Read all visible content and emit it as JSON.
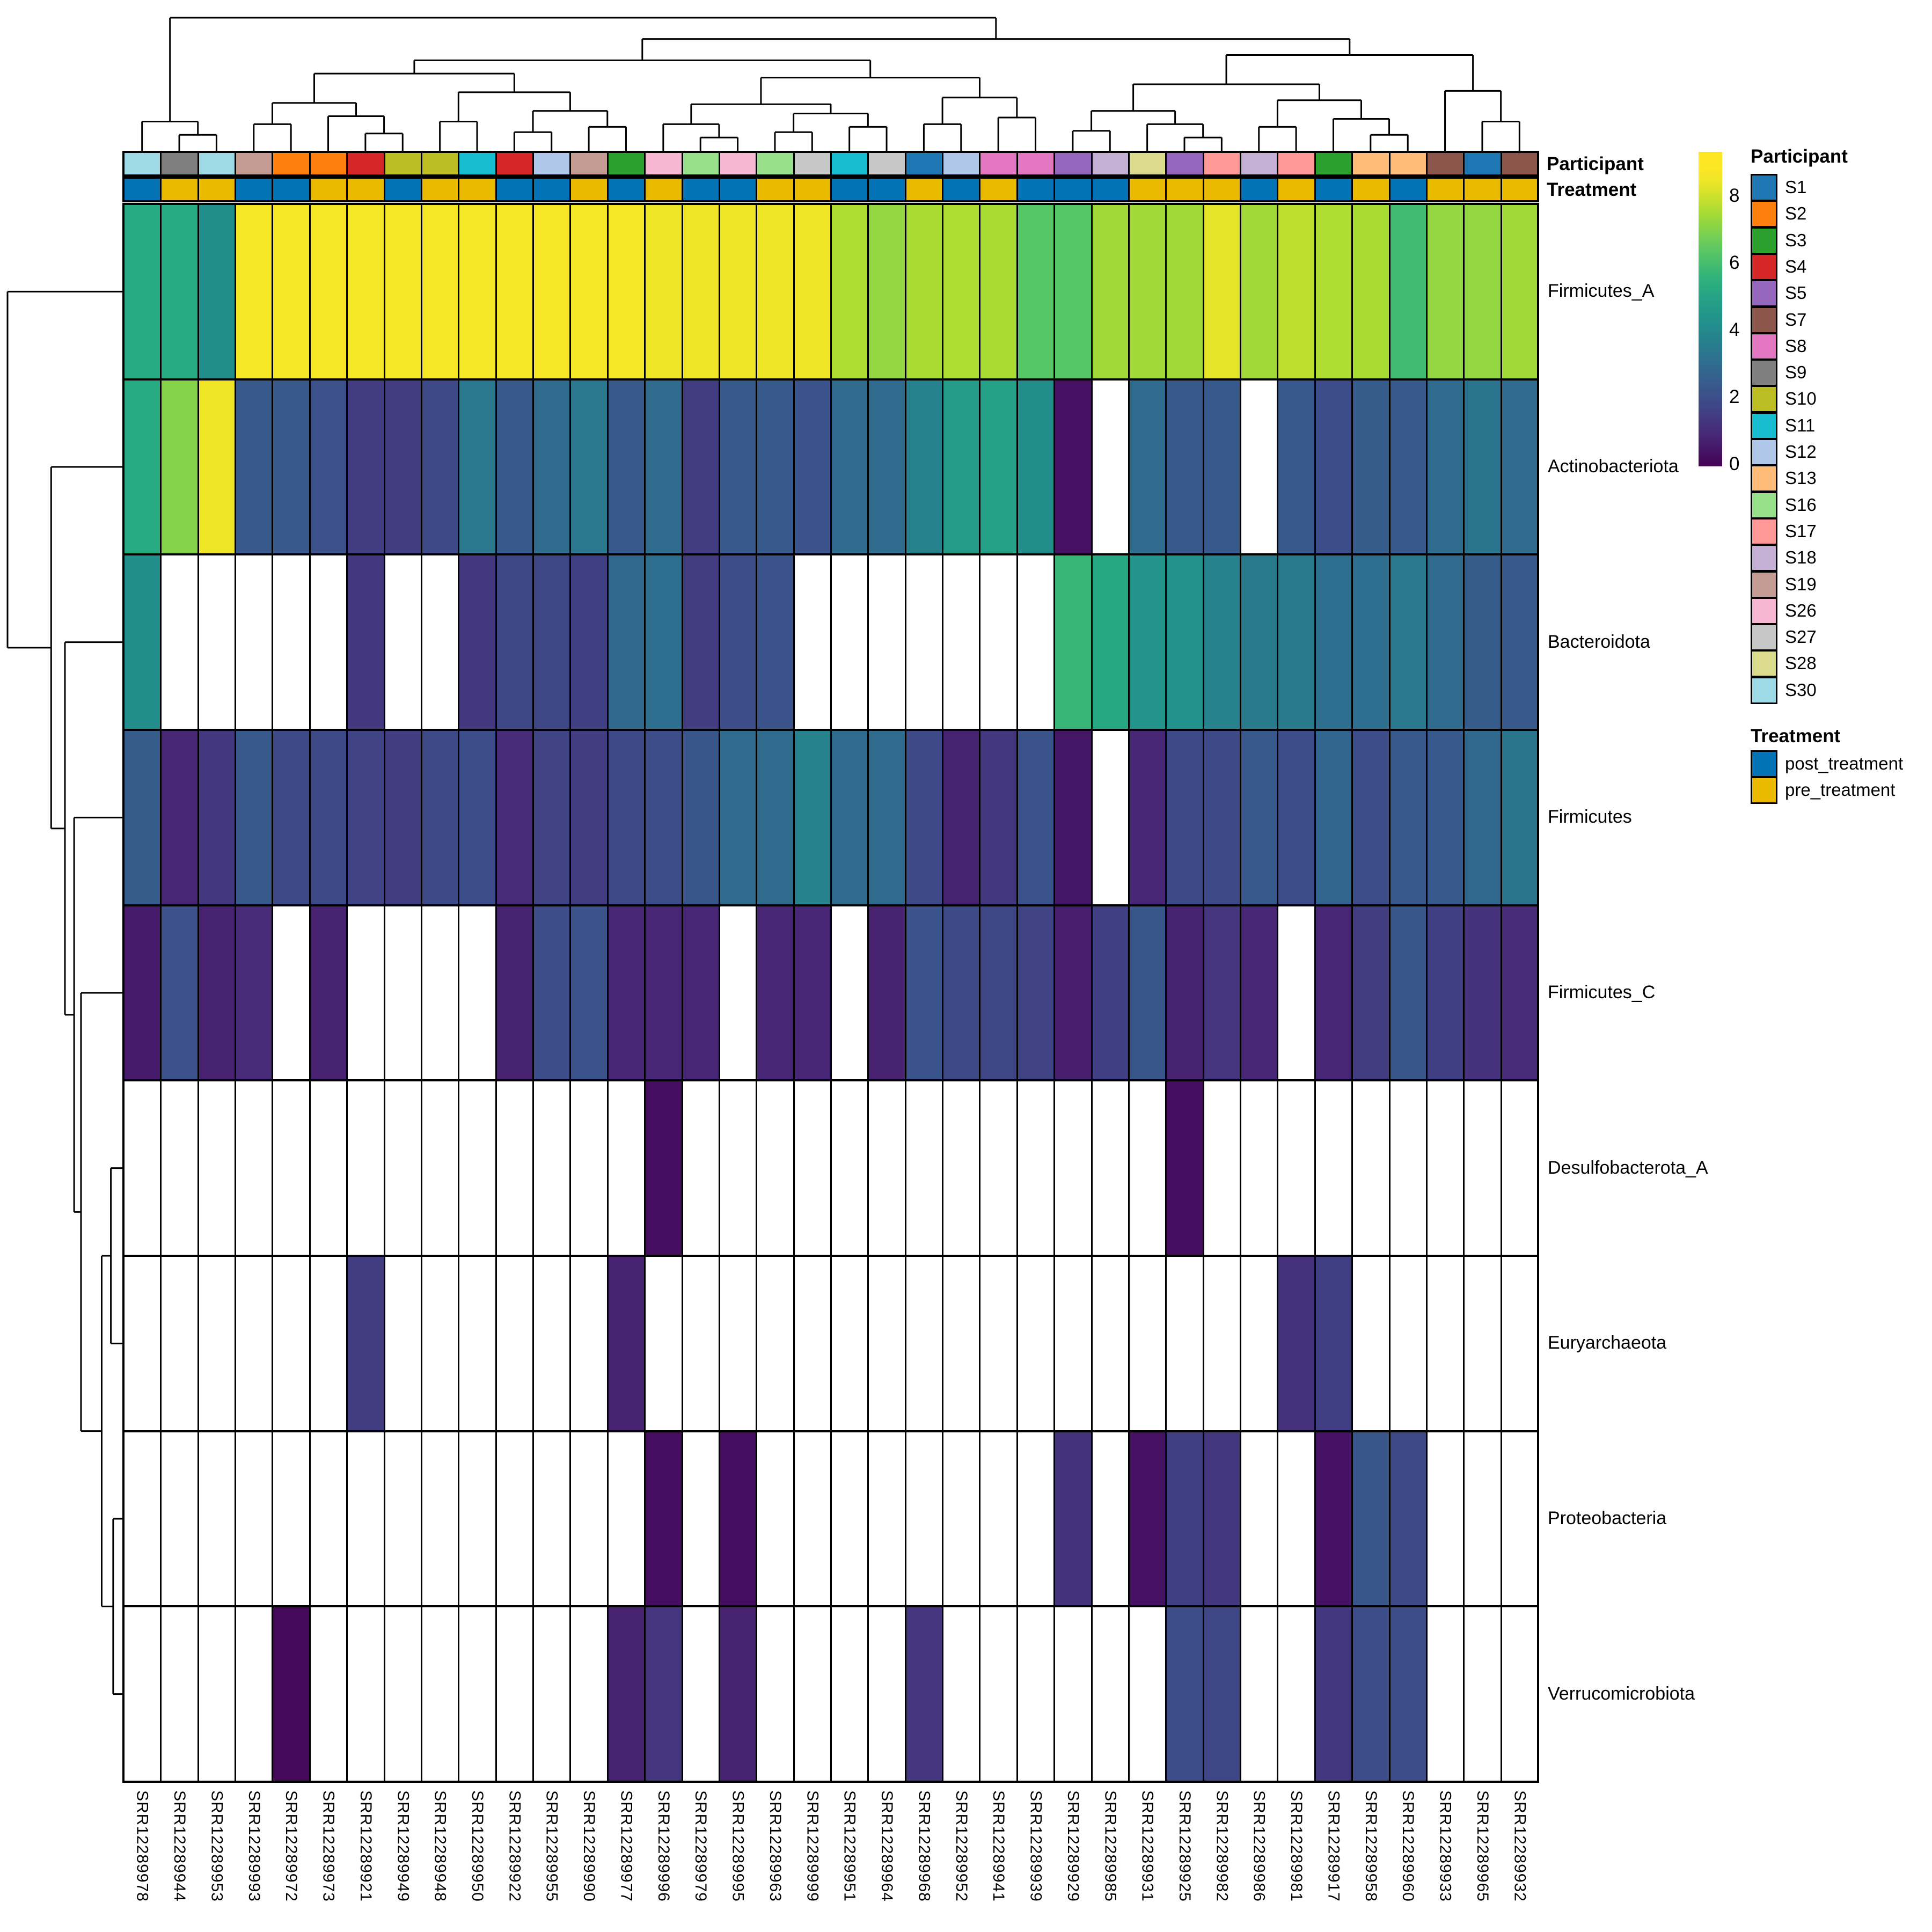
{
  "annotations": {
    "participant_label": "Participant",
    "treatment_label": "Treatment"
  },
  "legend": {
    "participant_title": "Participant",
    "treatment_title": "Treatment",
    "colorbar_ticks": [
      8,
      6,
      4,
      2,
      0
    ],
    "participants": [
      {
        "id": "S1",
        "color": "#1f77b4"
      },
      {
        "id": "S2",
        "color": "#ff7f0e"
      },
      {
        "id": "S3",
        "color": "#2ca02c"
      },
      {
        "id": "S4",
        "color": "#d62728"
      },
      {
        "id": "S5",
        "color": "#9467bd"
      },
      {
        "id": "S7",
        "color": "#8c564b"
      },
      {
        "id": "S8",
        "color": "#e377c2"
      },
      {
        "id": "S9",
        "color": "#7f7f7f"
      },
      {
        "id": "S10",
        "color": "#bcbd22"
      },
      {
        "id": "S11",
        "color": "#17becf"
      },
      {
        "id": "S12",
        "color": "#aec7e8"
      },
      {
        "id": "S13",
        "color": "#ffbb78"
      },
      {
        "id": "S16",
        "color": "#98df8a"
      },
      {
        "id": "S17",
        "color": "#ff9896"
      },
      {
        "id": "S18",
        "color": "#c5b0d5"
      },
      {
        "id": "S19",
        "color": "#c49c94"
      },
      {
        "id": "S26",
        "color": "#f7b6d2"
      },
      {
        "id": "S27",
        "color": "#c7c7c7"
      },
      {
        "id": "S28",
        "color": "#dbdb8d"
      },
      {
        "id": "S30",
        "color": "#9edae5"
      }
    ],
    "treatments": [
      {
        "id": "post_treatment",
        "color": "#0473b6"
      },
      {
        "id": "pre_treatment",
        "color": "#eaba00"
      }
    ]
  },
  "chart_data": {
    "type": "heatmap",
    "value_range": [
      0,
      8.6
    ],
    "na_color": "#ffffff",
    "viridis_stops": [
      "#440154",
      "#472d7b",
      "#3b528b",
      "#2c728e",
      "#21918c",
      "#27ad81",
      "#5ec962",
      "#aadc32",
      "#fde725"
    ],
    "columns": [
      "SRR12289978",
      "SRR12289944",
      "SRR12289953",
      "SRR12289993",
      "SRR12289972",
      "SRR12289973",
      "SRR12289921",
      "SRR12289949",
      "SRR12289948",
      "SRR12289950",
      "SRR12289922",
      "SRR12289955",
      "SRR12289990",
      "SRR12289977",
      "SRR12289996",
      "SRR12289979",
      "SRR12289995",
      "SRR12289963",
      "SRR12289999",
      "SRR12289951",
      "SRR12289964",
      "SRR12289968",
      "SRR12289952",
      "SRR12289941",
      "SRR12289939",
      "SRR12289929",
      "SRR12289985",
      "SRR12289931",
      "SRR12289925",
      "SRR12289982",
      "SRR12289986",
      "SRR12289981",
      "SRR12289917",
      "SRR12289958",
      "SRR12289960",
      "SRR12289933",
      "SRR12289965",
      "SRR12289932"
    ],
    "column_participant": [
      "S30",
      "S9",
      "S30",
      "S19",
      "S2",
      "S2",
      "S4",
      "S10",
      "S10",
      "S11",
      "S4",
      "S12",
      "S19",
      "S3",
      "S26",
      "S16",
      "S26",
      "S16",
      "S27",
      "S11",
      "S27",
      "S1",
      "S12",
      "S8",
      "S8",
      "S5",
      "S18",
      "S28",
      "S5",
      "S17",
      "S18",
      "S17",
      "S3",
      "S13",
      "S13",
      "S7",
      "S1",
      "S7"
    ],
    "column_treatment": [
      "post_treatment",
      "pre_treatment",
      "pre_treatment",
      "post_treatment",
      "post_treatment",
      "pre_treatment",
      "pre_treatment",
      "post_treatment",
      "pre_treatment",
      "pre_treatment",
      "post_treatment",
      "post_treatment",
      "pre_treatment",
      "post_treatment",
      "pre_treatment",
      "post_treatment",
      "post_treatment",
      "pre_treatment",
      "pre_treatment",
      "post_treatment",
      "post_treatment",
      "pre_treatment",
      "post_treatment",
      "pre_treatment",
      "post_treatment",
      "post_treatment",
      "post_treatment",
      "pre_treatment",
      "pre_treatment",
      "pre_treatment",
      "post_treatment",
      "pre_treatment",
      "post_treatment",
      "pre_treatment",
      "post_treatment",
      "pre_treatment",
      "pre_treatment",
      "pre_treatment"
    ],
    "rows": [
      "Firmicutes_A",
      "Actinobacteriota",
      "Bacteroidota",
      "Firmicutes",
      "Firmicutes_C",
      "Desulfobacterota_A",
      "Euryarchaeota",
      "Proteobacteria",
      "Verrucomicrobiota"
    ],
    "values": [
      [
        5.3,
        5.3,
        4.2,
        8.5,
        8.5,
        8.5,
        8.5,
        8.5,
        8.5,
        8.5,
        8.5,
        8.5,
        8.5,
        8.5,
        8.4,
        8.4,
        8.4,
        8.4,
        8.4,
        7.6,
        7.2,
        7.5,
        7.6,
        7.5,
        6.3,
        6.3,
        7.4,
        7.4,
        7.4,
        8.3,
        7.4,
        7.8,
        7.6,
        7.5,
        5.9,
        7.2,
        7.2,
        7.4
      ],
      [
        5.3,
        7.0,
        8.4,
        2.4,
        2.4,
        2.1,
        1.5,
        1.5,
        1.9,
        3.4,
        2.4,
        3.0,
        3.4,
        2.4,
        3.0,
        1.5,
        2.4,
        2.4,
        2.2,
        3.0,
        3.0,
        3.8,
        4.7,
        4.9,
        4.2,
        0.4,
        null,
        3.0,
        2.4,
        2.4,
        null,
        2.4,
        2.0,
        2.5,
        2.4,
        3.0,
        3.3,
        3.0
      ],
      [
        4.2,
        null,
        null,
        null,
        null,
        null,
        1.4,
        null,
        null,
        1.4,
        1.8,
        1.8,
        1.6,
        2.9,
        3.1,
        1.5,
        2.0,
        2.2,
        null,
        null,
        null,
        null,
        null,
        null,
        null,
        5.7,
        5.2,
        4.4,
        4.3,
        3.8,
        3.5,
        3.5,
        3.1,
        3.1,
        3.4,
        3.0,
        2.5,
        2.4
      ],
      [
        2.5,
        0.9,
        1.4,
        2.4,
        1.9,
        1.9,
        1.7,
        1.5,
        1.9,
        2.0,
        1.0,
        1.7,
        1.5,
        1.9,
        2.0,
        2.3,
        3.0,
        3.0,
        3.8,
        3.0,
        3.0,
        1.9,
        0.8,
        1.4,
        2.2,
        0.5,
        null,
        0.9,
        1.9,
        1.9,
        2.4,
        2.0,
        2.8,
        2.0,
        2.4,
        2.4,
        2.9,
        3.3
      ],
      [
        0.6,
        2.1,
        0.8,
        1.0,
        null,
        0.8,
        null,
        null,
        null,
        null,
        0.8,
        2.0,
        2.2,
        0.9,
        0.9,
        0.9,
        null,
        0.9,
        0.9,
        null,
        0.8,
        2.2,
        1.9,
        1.8,
        1.7,
        0.7,
        1.6,
        2.3,
        0.8,
        1.3,
        0.9,
        null,
        0.9,
        1.5,
        2.3,
        1.6,
        1.2,
        1.0
      ],
      [
        null,
        null,
        null,
        null,
        null,
        null,
        null,
        null,
        null,
        null,
        null,
        null,
        null,
        null,
        0.3,
        null,
        null,
        null,
        null,
        null,
        null,
        null,
        null,
        null,
        null,
        null,
        null,
        null,
        0.3,
        null,
        null,
        null,
        null,
        null,
        null,
        null,
        null,
        null
      ],
      [
        null,
        null,
        null,
        null,
        null,
        null,
        1.5,
        null,
        null,
        null,
        null,
        null,
        null,
        0.8,
        null,
        null,
        null,
        null,
        null,
        null,
        null,
        null,
        null,
        null,
        null,
        null,
        null,
        null,
        null,
        null,
        null,
        1.2,
        1.6,
        null,
        null,
        null,
        null,
        null
      ],
      [
        null,
        null,
        null,
        null,
        null,
        null,
        null,
        null,
        null,
        null,
        null,
        null,
        null,
        null,
        0.3,
        null,
        0.3,
        null,
        null,
        null,
        null,
        null,
        null,
        null,
        null,
        1.2,
        null,
        0.4,
        1.6,
        1.4,
        null,
        null,
        0.4,
        2.3,
        1.9,
        null,
        null,
        null
      ],
      [
        null,
        null,
        null,
        null,
        0.2,
        null,
        null,
        null,
        null,
        null,
        null,
        null,
        null,
        0.8,
        1.3,
        null,
        0.8,
        null,
        null,
        null,
        null,
        1.3,
        null,
        null,
        null,
        null,
        null,
        null,
        2.0,
        1.8,
        null,
        null,
        1.4,
        2.0,
        2.0,
        null,
        null,
        null
      ]
    ],
    "col_dendrogram": [
      1.0,
      [
        0.22,
        0,
        [
          0.12,
          1,
          2
        ]
      ],
      [
        0.84,
        [
          0.68,
          [
            0.58,
            [
              0.36,
              [
                0.2,
                3,
                4
              ],
              [
                0.26,
                5,
                [
                  0.13,
                  6,
                  7
                ]
              ]
            ],
            [
              0.44,
              [
                0.22,
                8,
                9
              ],
              [
                0.3,
                [
                  0.14,
                  10,
                  11
                ],
                [
                  0.18,
                  12,
                  13
                ]
              ]
            ]
          ],
          [
            0.55,
            [
              0.35,
              [
                0.2,
                14,
                [
                  0.1,
                  15,
                  16
                ]
              ],
              [
                0.28,
                [
                  0.14,
                  17,
                  18
                ],
                [
                  0.18,
                  19,
                  20
                ]
              ]
            ],
            [
              0.4,
              [
                0.2,
                21,
                22
              ],
              [
                0.25,
                23,
                24
              ]
            ]
          ]
        ],
        [
          0.72,
          [
            0.5,
            [
              0.3,
              [
                0.15,
                25,
                26
              ],
              [
                0.2,
                27,
                [
                  0.1,
                  28,
                  29
                ]
              ]
            ],
            [
              0.38,
              [
                0.18,
                30,
                31
              ],
              [
                0.24,
                32,
                [
                  0.12,
                  33,
                  34
                ]
              ]
            ]
          ],
          [
            0.45,
            35,
            [
              0.22,
              36,
              37
            ]
          ]
        ]
      ]
    ],
    "row_dendrogram": [
      1.0,
      0,
      [
        0.62,
        1,
        [
          0.5,
          2,
          [
            0.42,
            3,
            [
              0.36,
              4,
              [
                0.18,
                [
                  0.1,
                  5,
                  6
                ],
                [
                  0.08,
                  7,
                  8
                ]
              ]
            ]
          ]
        ]
      ]
    ]
  }
}
